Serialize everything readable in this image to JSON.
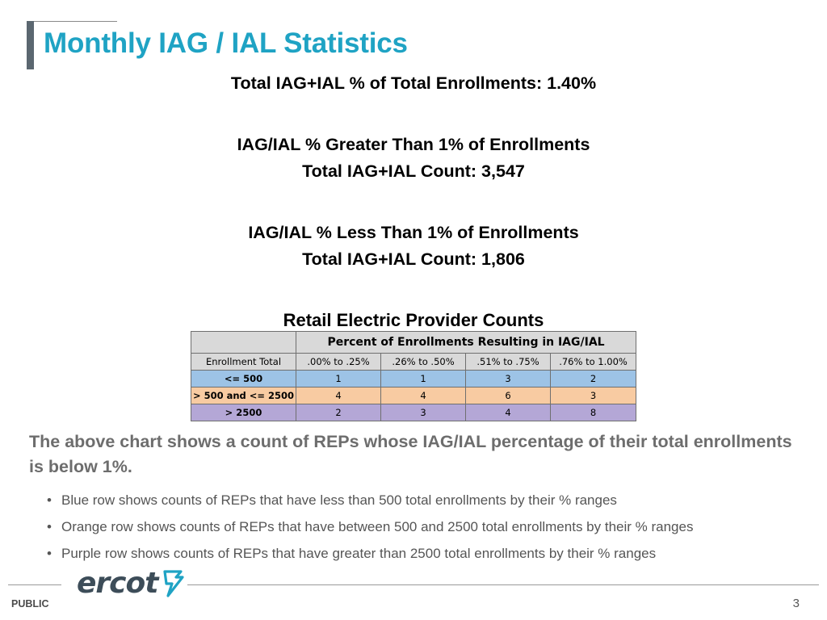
{
  "slide": {
    "title": "Monthly IAG / IAL Statistics",
    "stats": {
      "total_pct": "Total IAG+IAL % of Total Enrollments: 1.40%",
      "greater_heading": "IAG/IAL % Greater Than 1% of Enrollments",
      "greater_count": "Total IAG+IAL Count: 3,547",
      "less_heading": "IAG/IAL % Less Than 1% of Enrollments",
      "less_count": "Total IAG+IAL Count: 1,806"
    },
    "table": {
      "title": "Retail Electric Provider Counts",
      "group_header": "Percent of Enrollments Resulting in IAG/IAL",
      "row_header": "Enrollment Total",
      "columns": [
        ".00% to .25%",
        ".26% to .50%",
        ".51% to .75%",
        ".76% to 1.00%"
      ],
      "rows": [
        {
          "label": "<= 500",
          "values": [
            "1",
            "1",
            "3",
            "2"
          ],
          "color": "#9dc3e6"
        },
        {
          "label": "> 500 and <= 2500",
          "values": [
            "4",
            "4",
            "6",
            "3"
          ],
          "color": "#f8cba2"
        },
        {
          "label": "> 2500",
          "values": [
            "2",
            "3",
            "4",
            "8"
          ],
          "color": "#b4a7d6"
        }
      ]
    },
    "summary": "The above chart shows a count of REPs whose IAG/IAL percentage of their total enrollments is below 1%.",
    "bullet_char": "•",
    "bullets": [
      "Blue row shows counts of REPs that have less than 500 total enrollments by their % ranges",
      "Orange row shows counts of REPs that have between 500 and 2500 total enrollments by their % ranges",
      "Purple row shows counts of REPs that have greater than 2500 total enrollments by their % ranges"
    ],
    "footer": {
      "logo_text": "ercot",
      "label": "PUBLIC",
      "page_number": "3"
    },
    "colors": {
      "title": "#1fa3c4",
      "accent_bar": "#5b6770",
      "logo_text": "#3d4d59",
      "logo_mark": "#1fa3c4"
    }
  }
}
